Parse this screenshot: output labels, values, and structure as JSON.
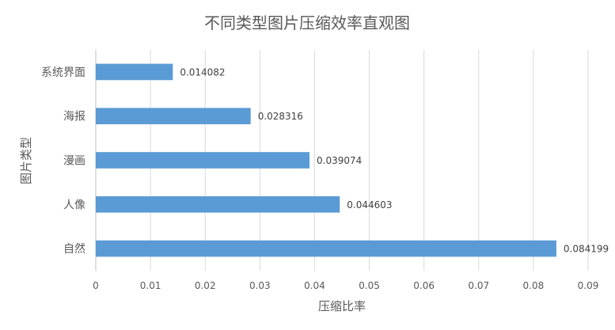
{
  "chart_data": {
    "type": "bar",
    "orientation": "horizontal",
    "title": "不同类型图片压缩效率直观图",
    "xlabel": "压缩比率",
    "ylabel": "图片类型",
    "categories": [
      "系统界面",
      "海报",
      "漫画",
      "人像",
      "自然"
    ],
    "values": [
      0.014082,
      0.028316,
      0.039074,
      0.044603,
      0.084199
    ],
    "data_labels": [
      "0.014082",
      "0.028316",
      "0.039074",
      "0.044603",
      "0.084199"
    ],
    "xlim": [
      0,
      0.09
    ],
    "xticks": [
      "0",
      "0.01",
      "0.02",
      "0.03",
      "0.04",
      "0.05",
      "0.06",
      "0.07",
      "0.08",
      "0.09"
    ],
    "grid": "vertical",
    "legend": "none",
    "bar_color": "#5b9bd5"
  }
}
